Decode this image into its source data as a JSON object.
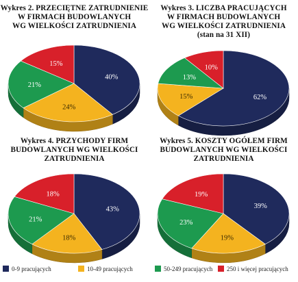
{
  "colors": {
    "series_0": "#1f2a5c",
    "series_1": "#f4b31f",
    "series_2": "#1d9a4f",
    "series_3": "#d8202a"
  },
  "legend": [
    {
      "label": "0-9 pracujących"
    },
    {
      "label": "10-49 pracujących"
    },
    {
      "label": "50-249 pracujących"
    },
    {
      "label": "250 i więcej pracujących"
    }
  ],
  "chart_data": [
    {
      "type": "pie",
      "title_lines": [
        "Wykres 2. PRZECIĘTNE ZATRUDNIENIE",
        "W FIRMACH BUDOWLANYCH",
        "WG WIELKOŚCI ZATRUDNIENIA"
      ],
      "categories": [
        "0-9 pracujących",
        "10-49 pracujących",
        "50-249 pracujących",
        "250 i więcej pracujących"
      ],
      "values": [
        40,
        24,
        21,
        15
      ],
      "labels": [
        "40%",
        "24%",
        "21%",
        "15%"
      ]
    },
    {
      "type": "pie",
      "title_lines": [
        "Wykres 3. LICZBA PRACUJĄCYCH",
        "W FIRMACH BUDOWLANYCH",
        "WG WIELKOŚCI ZATRUDNIENIA",
        "(stan na 31 XII)"
      ],
      "categories": [
        "0-9 pracujących",
        "10-49 pracujących",
        "50-249 pracujących",
        "250 i więcej pracujących"
      ],
      "values": [
        62,
        15,
        13,
        10
      ],
      "labels": [
        "62%",
        "15%",
        "13%",
        "10%"
      ]
    },
    {
      "type": "pie",
      "title_lines": [
        "Wykres 4. PRZYCHODY FIRM",
        "BUDOWLANYCH WG WIELKOŚCI",
        "ZATRUDNIENIA"
      ],
      "categories": [
        "0-9 pracujących",
        "10-49 pracujących",
        "50-249 pracujących",
        "250 i więcej pracujących"
      ],
      "values": [
        43,
        18,
        21,
        18
      ],
      "labels": [
        "43%",
        "18%",
        "21%",
        "18%"
      ]
    },
    {
      "type": "pie",
      "title_lines": [
        "Wykres 5. KOSZTY OGÓŁEM FIRM",
        "BUDOWLANYCH WG WIELKOŚCI",
        "ZATRUDNIENIA"
      ],
      "categories": [
        "0-9 pracujących",
        "10-49 pracujących",
        "50-249 pracujących",
        "250 i więcej pracujących"
      ],
      "values": [
        39,
        19,
        23,
        19
      ],
      "labels": [
        "39%",
        "19%",
        "23%",
        "19%"
      ]
    }
  ]
}
